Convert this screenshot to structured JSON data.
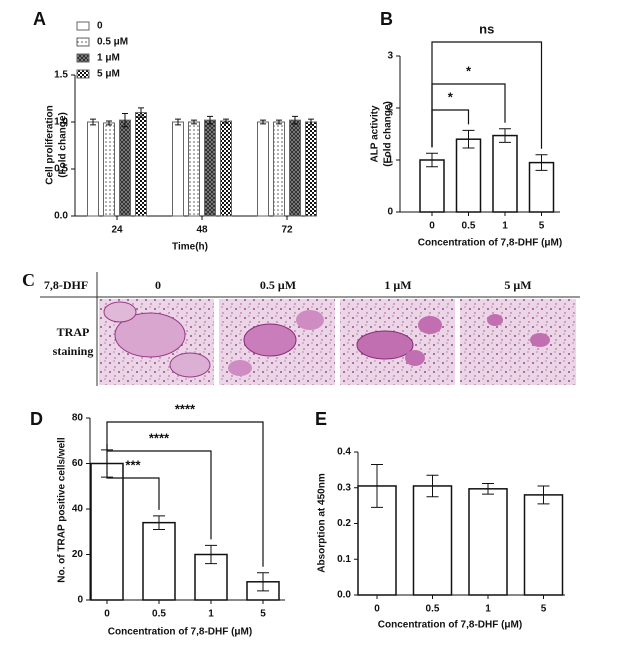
{
  "chart_data": [
    {
      "type": "bar",
      "panel": "A",
      "categories": [
        "24",
        "48",
        "72"
      ],
      "series": [
        {
          "name": "0",
          "values": [
            1.0,
            1.0,
            1.0
          ],
          "errors": [
            0.03,
            0.03,
            0.02
          ]
        },
        {
          "name": "0.5 μM",
          "values": [
            0.99,
            1.0,
            1.0
          ],
          "errors": [
            0.02,
            0.02,
            0.02
          ]
        },
        {
          "name": "1 μM",
          "values": [
            1.02,
            1.02,
            1.02
          ],
          "errors": [
            0.07,
            0.04,
            0.04
          ]
        },
        {
          "name": "5 μM",
          "values": [
            1.1,
            1.01,
            1.0
          ],
          "errors": [
            0.05,
            0.02,
            0.03
          ]
        }
      ],
      "xlabel": "Time(h)",
      "ylabel": [
        "Cell proliferation",
        "(Fold change)"
      ],
      "ylim": [
        0,
        1.5
      ],
      "yticks": [
        {
          "value": 0,
          "label": "0.0"
        },
        {
          "value": 0.5,
          "label": "0.5"
        },
        {
          "value": 1,
          "label": "1.0"
        },
        {
          "value": 1.5,
          "label": "1.5"
        }
      ],
      "legend": "top-left"
    },
    {
      "type": "bar",
      "panel": "B",
      "categories": [
        "0",
        "0.5",
        "1",
        "5"
      ],
      "values": [
        1.0,
        1.4,
        1.47,
        0.95
      ],
      "errors": [
        0.13,
        0.17,
        0.13,
        0.15
      ],
      "color": "#ffffff",
      "significance": [
        null,
        "*",
        "*",
        "ns"
      ],
      "xlabel": "Concentration of 7,8-DHF (μM)",
      "ylabel": [
        "ALP activity",
        "(Fold change)"
      ],
      "ylim": [
        0,
        3
      ],
      "yticks": [
        0,
        1,
        2,
        3
      ]
    },
    {
      "type": "bar",
      "panel": "D",
      "categories": [
        "0",
        "0.5",
        "1",
        "5"
      ],
      "values": [
        60,
        34,
        20,
        8
      ],
      "errors": [
        6,
        3,
        4,
        4
      ],
      "color": "#ffffff",
      "significance": [
        null,
        "***",
        "****",
        "****"
      ],
      "xlabel": "Concentration of 7,8-DHF (μM)",
      "ylabel": [
        "No. of TRAP positive cells/well"
      ],
      "ylim": [
        0,
        80
      ],
      "yticks": [
        0,
        20,
        40,
        60,
        80
      ]
    },
    {
      "type": "bar",
      "panel": "E",
      "categories": [
        "0",
        "0.5",
        "1",
        "5"
      ],
      "values": [
        0.305,
        0.305,
        0.297,
        0.28
      ],
      "errors": [
        0.06,
        0.03,
        0.015,
        0.025
      ],
      "color": "#ffffff",
      "xlabel": "Concentration of 7,8-DHF (μM)",
      "ylabel": [
        "Absorption at 450nm"
      ],
      "ylim": [
        0,
        0.4
      ],
      "yticks": [
        {
          "value": 0,
          "label": "0.0"
        },
        {
          "value": 0.1,
          "label": "0.1"
        },
        {
          "value": 0.2,
          "label": "0.2"
        },
        {
          "value": 0.3,
          "label": "0.3"
        },
        {
          "value": 0.4,
          "label": "0.4"
        }
      ]
    }
  ],
  "image_panel": {
    "panel": "C",
    "row_header": "7,8-DHF",
    "columns": [
      "0",
      "0.5 μM",
      "1 μM",
      "5 μM"
    ],
    "row_label": [
      "TRAP",
      "staining"
    ]
  }
}
